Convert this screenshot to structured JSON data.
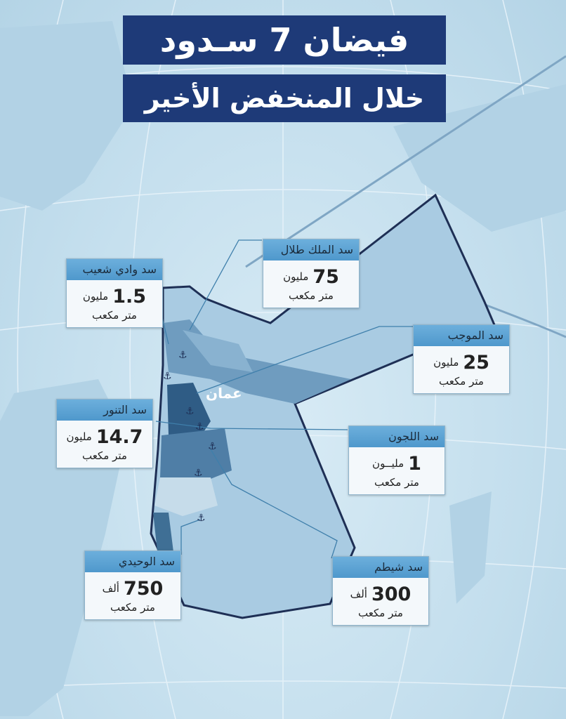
{
  "title": {
    "line1": "فيضان 7 سـدود",
    "line2": "خلال المنخفض الأخير"
  },
  "map": {
    "city_label": "عمان",
    "colors": {
      "title_bg": "#1e3a78",
      "header": "#5aa3d4",
      "map_fill": "#a9cbe2",
      "map_dark": "#3f6f95",
      "border": "#1e2f55"
    }
  },
  "dams": [
    {
      "name": "سد وادي شعيب",
      "value": "1.5",
      "scale": "مليون",
      "unit": "متر مكعب"
    },
    {
      "name": "سد الملك طلال",
      "value": "75",
      "scale": "مليون",
      "unit": "متر مكعب"
    },
    {
      "name": "سد الموجب",
      "value": "25",
      "scale": "مليون",
      "unit": "متر مكعب"
    },
    {
      "name": "سد التنور",
      "value": "14.7",
      "scale": "مليون",
      "unit": "متر مكعب"
    },
    {
      "name": "سد اللجون",
      "value": "1",
      "scale": "مليــون",
      "unit": "متر مكعب"
    },
    {
      "name": "سد الوحيدي",
      "value": "750",
      "scale": "ألف",
      "unit": "متر مكعب"
    },
    {
      "name": "سد شيطم",
      "value": "300",
      "scale": "ألف",
      "unit": "متر مكعب"
    }
  ]
}
